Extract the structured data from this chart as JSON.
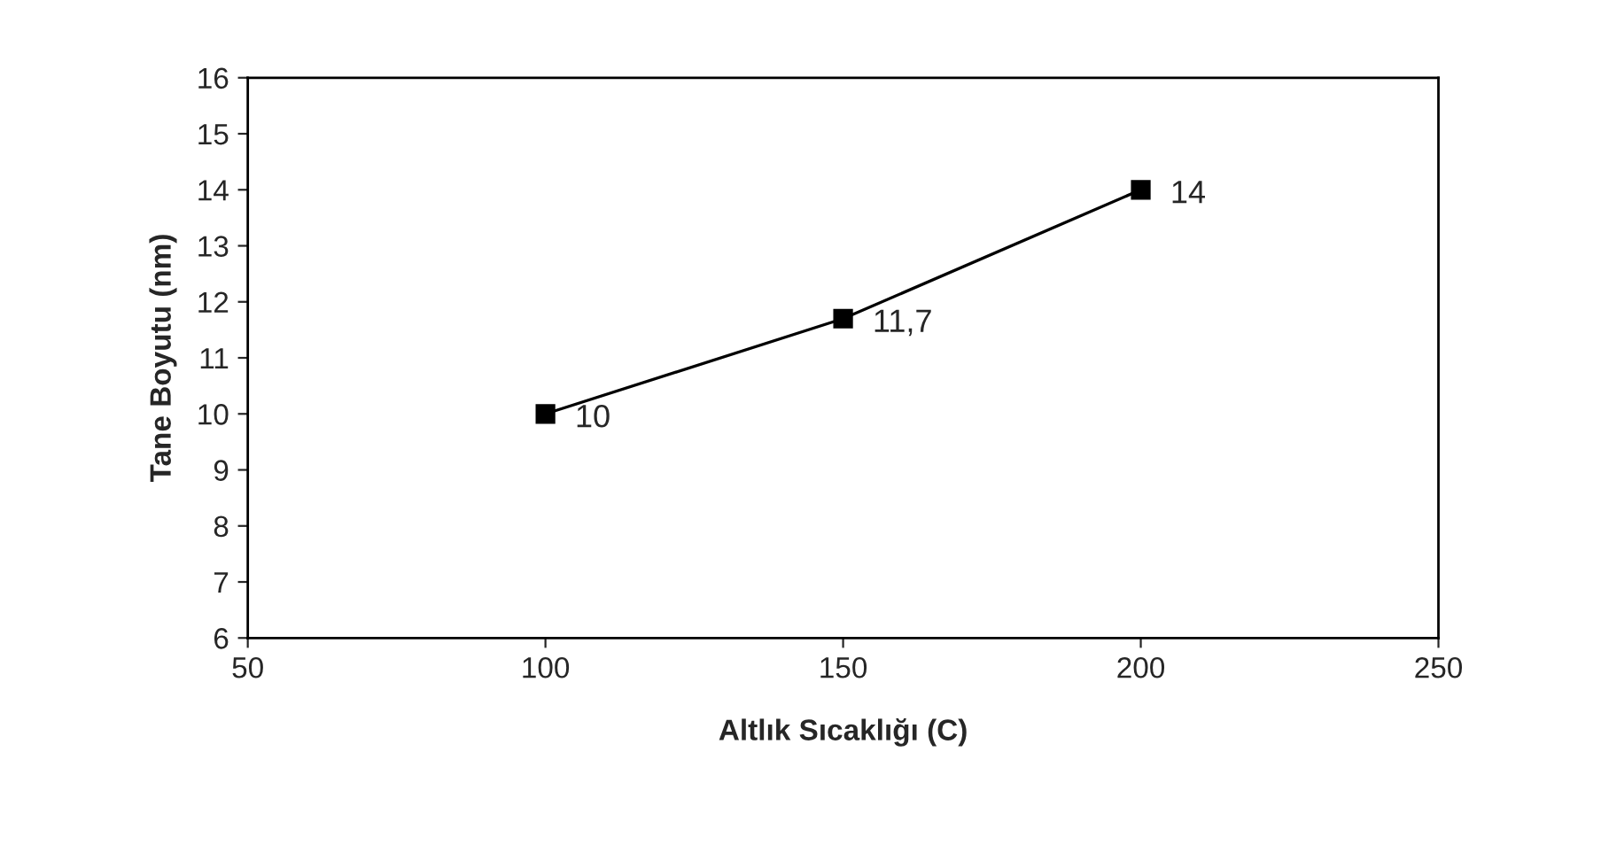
{
  "chart_data": {
    "type": "line",
    "xlabel": "Altlık Sıcaklığı (C)",
    "ylabel": "Tane Boyutu (nm)",
    "x": [
      100,
      150,
      200
    ],
    "series": [
      {
        "color": "#000000",
        "values": [
          10,
          11.7,
          14
        ],
        "value_labels": [
          "10",
          "11,7",
          "14"
        ]
      }
    ],
    "xlim": [
      50,
      250
    ],
    "xticks": [
      50,
      100,
      150,
      200,
      250
    ],
    "ylim": [
      6,
      16
    ],
    "yticks": [
      6,
      7,
      8,
      9,
      10,
      11,
      12,
      13,
      14,
      15,
      16
    ],
    "marker": "square",
    "line_style": "solid",
    "grid": false,
    "legend": false
  }
}
